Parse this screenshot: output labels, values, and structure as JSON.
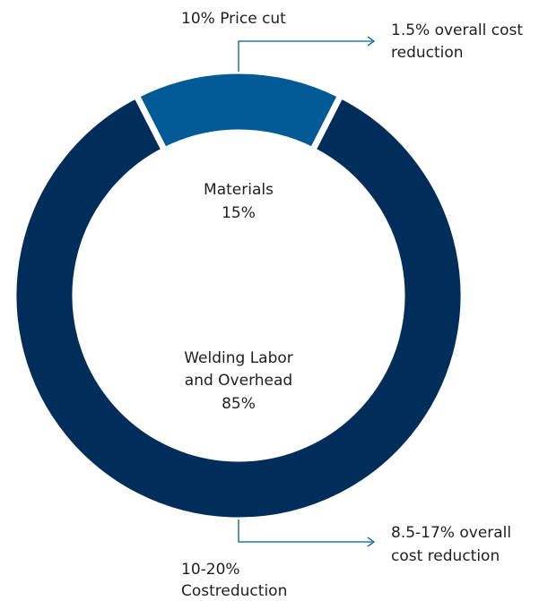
{
  "chart_data": {
    "type": "pie",
    "variant": "donut",
    "slices": [
      {
        "label": "Materials",
        "value": 15,
        "value_text": "15%",
        "color": "#005a96"
      },
      {
        "label": "Welding Labor and Overhead",
        "value": 85,
        "value_text": "85%",
        "color": "#002d5a"
      }
    ],
    "center_labels": {
      "materials": {
        "line1": "Materials",
        "line2": "15%"
      },
      "welding": {
        "line1": "Welding Labor",
        "line2": "and Overhead",
        "line3": "85%"
      }
    },
    "annotations": {
      "price_cut": "10% Price cut",
      "materials_saving": {
        "line1": "1.5% overall cost",
        "line2": "reduction"
      },
      "labor_saving": {
        "line1": "8.5-17% overall",
        "line2": "cost reduction"
      },
      "labor_cut": {
        "line1": "10-20%",
        "line2": "Costreduction"
      }
    },
    "leader_line_color": "#005a96"
  }
}
